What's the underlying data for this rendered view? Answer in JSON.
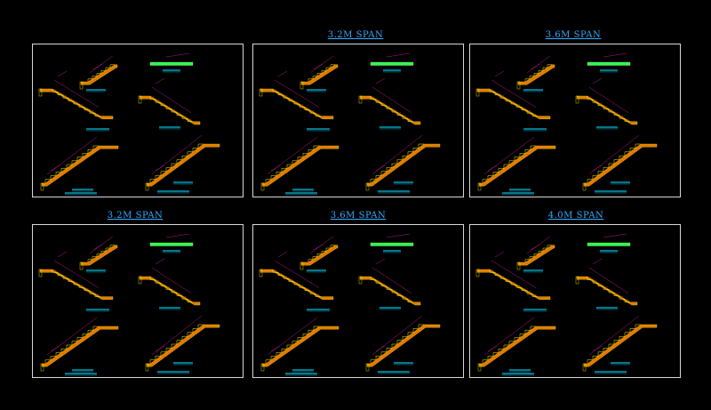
{
  "sheets": [
    {
      "title": ""
    },
    {
      "title": "3.2M  SPAN"
    },
    {
      "title": "3.6M  SPAN"
    },
    {
      "title": "3.2M  SPAN"
    },
    {
      "title": "3.6M  SPAN"
    },
    {
      "title": "4.0M  SPAN"
    }
  ],
  "colors": {
    "background": "#000000",
    "frame": "#d8d8d8",
    "title": "#33aaff",
    "stair_fill": "#ff8800",
    "stair_edge": "#ffee00",
    "dimension": "#ff22cc",
    "label": "#00d8ff",
    "green": "#22ff66"
  }
}
